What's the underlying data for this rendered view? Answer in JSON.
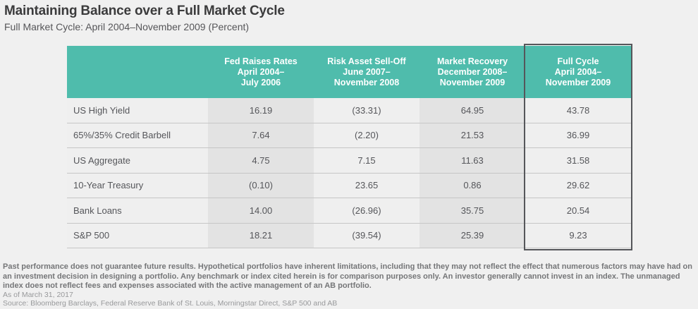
{
  "page": {
    "title": "Maintaining Balance over a Full Market Cycle",
    "subtitle": "Full Market Cycle: April 2004–November 2009 (Percent)"
  },
  "chart_data": {
    "type": "table",
    "title": "Maintaining Balance over a Full Market Cycle",
    "subtitle": "Full Market Cycle: April 2004–November 2009 (Percent)",
    "unit": "percent",
    "columns": [
      "",
      "Fed Raises Rates\nApril 2004–\nJuly 2006",
      "Risk Asset Sell-Off\nJune 2007–\nNovember 2008",
      "Market Recovery\nDecember 2008–\nNovember 2009",
      "Full Cycle\nApril 2004–\nNovember 2009"
    ],
    "rows": [
      {
        "label": "US High Yield",
        "values": [
          "16.19",
          "(33.31)",
          "64.95",
          "43.78"
        ]
      },
      {
        "label": "65%/35% Credit Barbell",
        "values": [
          "7.64",
          "(2.20)",
          "21.53",
          "36.99"
        ]
      },
      {
        "label": "US Aggregate",
        "values": [
          "4.75",
          "7.15",
          "11.63",
          "31.58"
        ]
      },
      {
        "label": "10-Year Treasury",
        "values": [
          "(0.10)",
          "23.65",
          "0.86",
          "29.62"
        ]
      },
      {
        "label": "Bank Loans",
        "values": [
          "14.00",
          "(26.96)",
          "35.75",
          "20.54"
        ]
      },
      {
        "label": "S&P 500",
        "values": [
          "18.21",
          "(39.54)",
          "25.39",
          "9.23"
        ]
      }
    ],
    "numeric_rows": [
      {
        "label": "US High Yield",
        "values": [
          16.19,
          -33.31,
          64.95,
          43.78
        ]
      },
      {
        "label": "65%/35% Credit Barbell",
        "values": [
          7.64,
          -2.2,
          21.53,
          36.99
        ]
      },
      {
        "label": "US Aggregate",
        "values": [
          4.75,
          7.15,
          11.63,
          31.58
        ]
      },
      {
        "label": "10-Year Treasury",
        "values": [
          -0.1,
          23.65,
          0.86,
          29.62
        ]
      },
      {
        "label": "Bank Loans",
        "values": [
          14.0,
          -26.96,
          35.75,
          20.54
        ]
      },
      {
        "label": "S&P 500",
        "values": [
          18.21,
          -39.54,
          25.39,
          9.23
        ]
      }
    ],
    "highlighted_column": "Full Cycle April 2004–November 2009"
  },
  "footnotes": {
    "disclaimer": "Past performance does not guarantee future results.  Hypothetical portfolios have inherent limitations, including that they may not reflect the effect that numerous factors may have had on an investment decision in designing a portfolio. Any benchmark or index cited herein is for comparison purposes only.  An investor generally cannot invest in an index. The unmanaged index does not reflect fees and expenses associated with the active management of an AB portfolio.",
    "as_of": "As of March 31, 2017",
    "source": "Source: Bloomberg Barclays, Federal Reserve Bank of St. Louis, Morningstar Direct, S&P 500 and AB"
  },
  "colors": {
    "header_teal": "#4fbcac",
    "column_shade_light": "#efefef",
    "column_shade_dark": "#e3e3e3",
    "highlight_border": "#55565a",
    "page_background": "#f0f0f0"
  }
}
